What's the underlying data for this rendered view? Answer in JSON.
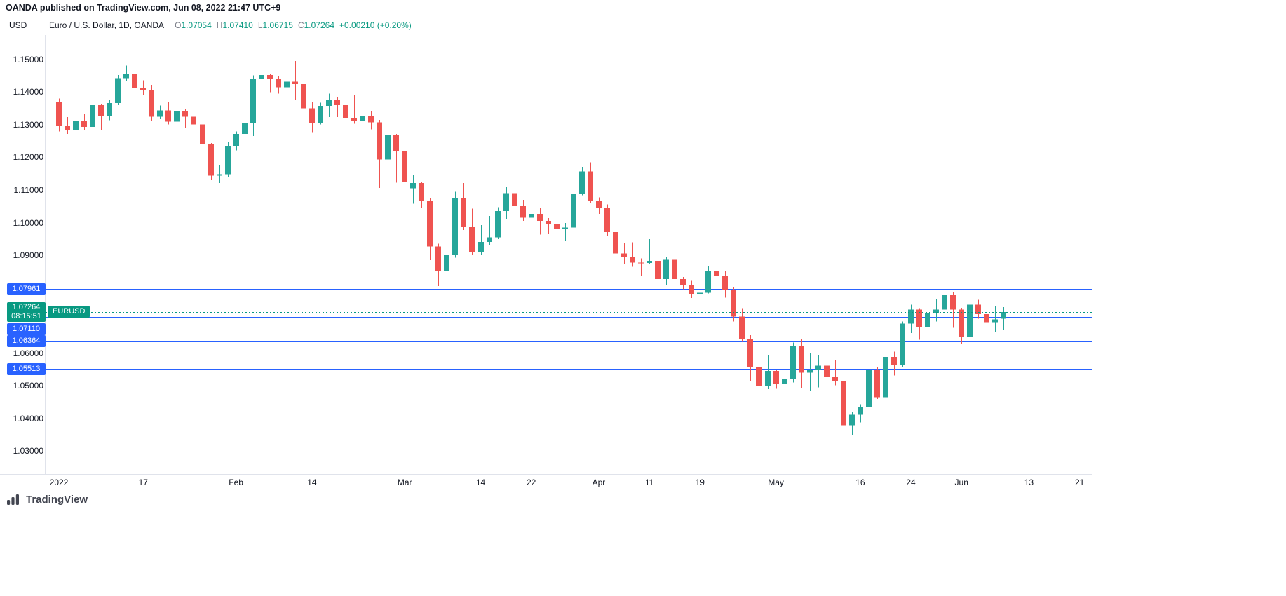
{
  "attribution": "OANDA published on TradingView.com, Jun 08, 2022 21:47 UTC+9",
  "price_axis_currency": "USD",
  "legend": {
    "title": "Euro / U.S. Dollar, 1D, OANDA",
    "o_label": "O",
    "o_value": "1.07054",
    "h_label": "H",
    "h_value": "1.07410",
    "l_label": "L",
    "l_value": "1.06715",
    "c_label": "C",
    "c_value": "1.07264",
    "change": "+0.00210 (+0.20%)"
  },
  "current_price": {
    "price": "1.07264",
    "countdown": "08:15:51",
    "symbol": "EURUSD"
  },
  "level_lines": [
    {
      "label": "1.07961",
      "value": 1.07961
    },
    {
      "label": "1.07110",
      "value": 1.0711
    },
    {
      "label": "1.06364",
      "value": 1.06364
    },
    {
      "label": "1.05513",
      "value": 1.05513
    }
  ],
  "footer": {
    "brand": "TradingView"
  },
  "colors": {
    "up": "#26a69a",
    "down": "#ef5350",
    "level_line": "#2962ff",
    "badge_blue": "#2962ff",
    "current": "#089981",
    "axis_text": "#131722",
    "legend_value": "#089981"
  },
  "chart_data": {
    "type": "candlestick",
    "title": "Euro / U.S. Dollar, 1D, OANDA",
    "symbol": "EURUSD",
    "timeframe": "1D",
    "exchange": "OANDA",
    "ylim": [
      1.0238,
      1.1575
    ],
    "grid": false,
    "legend_position": "top-left",
    "y_ticks": [
      1.15,
      1.14,
      1.13,
      1.12,
      1.11,
      1.1,
      1.09,
      1.06,
      1.05,
      1.04,
      1.03
    ],
    "x_ticks": [
      {
        "label": "2022",
        "i": 0
      },
      {
        "label": "17",
        "i": 10
      },
      {
        "label": "Feb",
        "i": 21
      },
      {
        "label": "14",
        "i": 30
      },
      {
        "label": "Mar",
        "i": 41
      },
      {
        "label": "14",
        "i": 50
      },
      {
        "label": "22",
        "i": 56
      },
      {
        "label": "Apr",
        "i": 64
      },
      {
        "label": "11",
        "i": 70
      },
      {
        "label": "19",
        "i": 76
      },
      {
        "label": "May",
        "i": 85
      },
      {
        "label": "16",
        "i": 95
      },
      {
        "label": "24",
        "i": 101
      },
      {
        "label": "Jun",
        "i": 107
      },
      {
        "label": "13",
        "i": 115
      },
      {
        "label": "21",
        "i": 121
      }
    ],
    "levels": [
      1.07961,
      1.0711,
      1.06364,
      1.05513
    ],
    "last_price": 1.07264,
    "last_change": "+0.00210 (+0.20%)",
    "candles": [
      [
        "2022-01-03",
        1.137,
        1.138,
        1.1279,
        1.1297
      ],
      [
        "2022-01-04",
        1.1297,
        1.1323,
        1.1272,
        1.1285
      ],
      [
        "2022-01-05",
        1.1285,
        1.1347,
        1.1278,
        1.1312
      ],
      [
        "2022-01-06",
        1.1312,
        1.1332,
        1.1285,
        1.1293
      ],
      [
        "2022-01-07",
        1.1293,
        1.1365,
        1.1288,
        1.136
      ],
      [
        "2022-01-10",
        1.136,
        1.1363,
        1.1285,
        1.1327
      ],
      [
        "2022-01-11",
        1.1327,
        1.1375,
        1.1314,
        1.1367
      ],
      [
        "2022-01-12",
        1.1367,
        1.1453,
        1.136,
        1.1443
      ],
      [
        "2022-01-13",
        1.1443,
        1.1482,
        1.1435,
        1.1455
      ],
      [
        "2022-01-14",
        1.1455,
        1.1484,
        1.1398,
        1.1412
      ],
      [
        "2022-01-17",
        1.1412,
        1.1436,
        1.1391,
        1.1406
      ],
      [
        "2022-01-18",
        1.1406,
        1.1422,
        1.1313,
        1.1325
      ],
      [
        "2022-01-19",
        1.1325,
        1.1359,
        1.1317,
        1.1344
      ],
      [
        "2022-01-20",
        1.1344,
        1.1369,
        1.1301,
        1.131
      ],
      [
        "2022-01-21",
        1.131,
        1.136,
        1.13,
        1.1343
      ],
      [
        "2022-01-24",
        1.1343,
        1.1349,
        1.1291,
        1.1325
      ],
      [
        "2022-01-25",
        1.1325,
        1.1332,
        1.1264,
        1.1301
      ],
      [
        "2022-01-26",
        1.1301,
        1.131,
        1.1235,
        1.124
      ],
      [
        "2022-01-27",
        1.124,
        1.1244,
        1.1131,
        1.1144
      ],
      [
        "2022-01-28",
        1.1144,
        1.1175,
        1.1121,
        1.1148
      ],
      [
        "2022-01-31",
        1.1148,
        1.1248,
        1.1141,
        1.1235
      ],
      [
        "2022-02-01",
        1.1235,
        1.1279,
        1.1221,
        1.1272
      ],
      [
        "2022-02-02",
        1.1272,
        1.133,
        1.1254,
        1.1304
      ],
      [
        "2022-02-03",
        1.1304,
        1.1451,
        1.1266,
        1.1441
      ],
      [
        "2022-02-04",
        1.1441,
        1.1483,
        1.1411,
        1.1452
      ],
      [
        "2022-02-07",
        1.1452,
        1.1456,
        1.14,
        1.1442
      ],
      [
        "2022-02-08",
        1.1442,
        1.1449,
        1.1396,
        1.1415
      ],
      [
        "2022-02-09",
        1.1415,
        1.1448,
        1.1403,
        1.1432
      ],
      [
        "2022-02-10",
        1.1432,
        1.1495,
        1.1375,
        1.1425
      ],
      [
        "2022-02-11",
        1.1425,
        1.144,
        1.133,
        1.135
      ],
      [
        "2022-02-14",
        1.135,
        1.1369,
        1.1277,
        1.1305
      ],
      [
        "2022-02-15",
        1.1305,
        1.1368,
        1.1301,
        1.1358
      ],
      [
        "2022-02-16",
        1.1358,
        1.1395,
        1.1324,
        1.1375
      ],
      [
        "2022-02-17",
        1.1375,
        1.1385,
        1.1324,
        1.136
      ],
      [
        "2022-02-18",
        1.136,
        1.137,
        1.1316,
        1.1321
      ],
      [
        "2022-02-21",
        1.1321,
        1.139,
        1.1303,
        1.1311
      ],
      [
        "2022-02-22",
        1.1311,
        1.1368,
        1.1287,
        1.1327
      ],
      [
        "2022-02-23",
        1.1327,
        1.1342,
        1.1286,
        1.1307
      ],
      [
        "2022-02-24",
        1.1307,
        1.1315,
        1.1106,
        1.1193
      ],
      [
        "2022-02-25",
        1.1193,
        1.1273,
        1.1184,
        1.127
      ],
      [
        "2022-02-28",
        1.127,
        1.1272,
        1.1122,
        1.1218
      ],
      [
        "2022-03-01",
        1.1218,
        1.1232,
        1.109,
        1.1125
      ],
      [
        "2022-03-02",
        1.1105,
        1.1145,
        1.1058,
        1.1121
      ],
      [
        "2022-03-03",
        1.1121,
        1.1124,
        1.1045,
        1.1067
      ],
      [
        "2022-03-04",
        1.1067,
        1.1075,
        1.0885,
        1.0927
      ],
      [
        "2022-03-07",
        1.0927,
        1.0935,
        1.0806,
        1.0853
      ],
      [
        "2022-03-08",
        1.0853,
        1.096,
        1.0845,
        1.0901
      ],
      [
        "2022-03-09",
        1.0901,
        1.1095,
        1.0893,
        1.1075
      ],
      [
        "2022-03-10",
        1.1075,
        1.1121,
        1.0977,
        1.0986
      ],
      [
        "2022-03-11",
        1.0986,
        1.1043,
        1.09,
        1.0911
      ],
      [
        "2022-03-14",
        1.0911,
        1.0993,
        1.0901,
        1.0941
      ],
      [
        "2022-03-15",
        1.0941,
        1.102,
        1.0931,
        1.0955
      ],
      [
        "2022-03-16",
        1.0955,
        1.1047,
        1.095,
        1.1036
      ],
      [
        "2022-03-17",
        1.1036,
        1.111,
        1.101,
        1.109
      ],
      [
        "2022-03-18",
        1.109,
        1.1119,
        1.1003,
        1.1051
      ],
      [
        "2022-03-21",
        1.1051,
        1.107,
        1.1005,
        1.1015
      ],
      [
        "2022-03-22",
        1.1015,
        1.1046,
        1.0962,
        1.1027
      ],
      [
        "2022-03-23",
        1.1027,
        1.1044,
        1.0963,
        1.1005
      ],
      [
        "2022-03-24",
        1.1005,
        1.1014,
        1.0965,
        1.0997
      ],
      [
        "2022-03-25",
        1.0997,
        1.1039,
        1.098,
        1.0982
      ],
      [
        "2022-03-28",
        1.0982,
        1.0999,
        1.0944,
        1.0985
      ],
      [
        "2022-03-29",
        1.0985,
        1.1137,
        1.098,
        1.1087
      ],
      [
        "2022-03-30",
        1.1087,
        1.1171,
        1.1084,
        1.1157
      ],
      [
        "2022-03-31",
        1.1157,
        1.1185,
        1.106,
        1.1066
      ],
      [
        "2022-04-01",
        1.1066,
        1.1077,
        1.1027,
        1.1046
      ],
      [
        "2022-04-04",
        1.1046,
        1.1056,
        1.096,
        1.0971
      ],
      [
        "2022-04-05",
        1.0971,
        1.099,
        1.0899,
        1.0905
      ],
      [
        "2022-04-06",
        1.0905,
        1.0938,
        1.0874,
        1.0895
      ],
      [
        "2022-04-07",
        1.0895,
        1.094,
        1.0865,
        1.0878
      ],
      [
        "2022-04-08",
        1.0878,
        1.089,
        1.0836,
        1.0876
      ],
      [
        "2022-04-11",
        1.0876,
        1.095,
        1.0872,
        1.0883
      ],
      [
        "2022-04-12",
        1.0883,
        1.0904,
        1.0821,
        1.0827
      ],
      [
        "2022-04-13",
        1.0827,
        1.0895,
        1.0809,
        1.0886
      ],
      [
        "2022-04-14",
        1.0886,
        1.0923,
        1.0757,
        1.0827
      ],
      [
        "2022-04-15",
        1.0827,
        1.0833,
        1.0796,
        1.0808
      ],
      [
        "2022-04-18",
        1.0808,
        1.0822,
        1.0769,
        1.0781
      ],
      [
        "2022-04-19",
        1.0781,
        1.0815,
        1.0761,
        1.0785
      ],
      [
        "2022-04-20",
        1.0785,
        1.0867,
        1.0783,
        1.0853
      ],
      [
        "2022-04-21",
        1.0853,
        1.0936,
        1.0824,
        1.0838
      ],
      [
        "2022-04-22",
        1.0838,
        1.0852,
        1.077,
        1.0795
      ],
      [
        "2022-04-25",
        1.0795,
        1.0801,
        1.0697,
        1.0712
      ],
      [
        "2022-04-26",
        1.0712,
        1.0738,
        1.0635,
        1.0644
      ],
      [
        "2022-04-27",
        1.0644,
        1.0655,
        1.0514,
        1.0556
      ],
      [
        "2022-04-28",
        1.0556,
        1.0568,
        1.0471,
        1.0498
      ],
      [
        "2022-04-29",
        1.0498,
        1.0593,
        1.049,
        1.0545
      ],
      [
        "2022-05-02",
        1.0545,
        1.0549,
        1.0491,
        1.0505
      ],
      [
        "2022-05-03",
        1.0505,
        1.054,
        1.0493,
        1.0522
      ],
      [
        "2022-05-04",
        1.0522,
        1.0632,
        1.051,
        1.0622
      ],
      [
        "2022-05-05",
        1.0622,
        1.0642,
        1.0492,
        1.054
      ],
      [
        "2022-05-06",
        1.054,
        1.0599,
        1.0483,
        1.055
      ],
      [
        "2022-05-09",
        1.055,
        1.0594,
        1.0495,
        1.0561
      ],
      [
        "2022-05-10",
        1.0561,
        1.0564,
        1.0503,
        1.0528
      ],
      [
        "2022-05-11",
        1.0528,
        1.0579,
        1.0501,
        1.0514
      ],
      [
        "2022-05-12",
        1.0514,
        1.0525,
        1.0354,
        1.0379
      ],
      [
        "2022-05-13",
        1.0379,
        1.042,
        1.0348,
        1.0411
      ],
      [
        "2022-05-16",
        1.0411,
        1.0443,
        1.0387,
        1.0434
      ],
      [
        "2022-05-17",
        1.0434,
        1.0564,
        1.0427,
        1.0549
      ],
      [
        "2022-05-18",
        1.0549,
        1.0556,
        1.0459,
        1.0465
      ],
      [
        "2022-05-19",
        1.0465,
        1.0607,
        1.0462,
        1.0588
      ],
      [
        "2022-05-20",
        1.0588,
        1.0604,
        1.0531,
        1.0563
      ],
      [
        "2022-05-23",
        1.0563,
        1.0697,
        1.0556,
        1.0691
      ],
      [
        "2022-05-24",
        1.0691,
        1.0748,
        1.0661,
        1.0734
      ],
      [
        "2022-05-25",
        1.0734,
        1.0738,
        1.0641,
        1.068
      ],
      [
        "2022-05-26",
        1.068,
        1.0739,
        1.0671,
        1.0724
      ],
      [
        "2022-05-27",
        1.0724,
        1.0765,
        1.0697,
        1.0733
      ],
      [
        "2022-05-30",
        1.0733,
        1.0786,
        1.0726,
        1.0778
      ],
      [
        "2022-05-31",
        1.0778,
        1.0787,
        1.0678,
        1.0733
      ],
      [
        "2022-06-01",
        1.0733,
        1.0739,
        1.0627,
        1.065
      ],
      [
        "2022-06-02",
        1.065,
        1.0764,
        1.0642,
        1.0748
      ],
      [
        "2022-06-03",
        1.0748,
        1.0764,
        1.0706,
        1.0719
      ],
      [
        "2022-06-06",
        1.0719,
        1.0735,
        1.0653,
        1.0695
      ],
      [
        "2022-06-07",
        1.0695,
        1.0745,
        1.0665,
        1.0703
      ],
      [
        "2022-06-08",
        1.07054,
        1.0741,
        1.06715,
        1.07264
      ]
    ]
  }
}
